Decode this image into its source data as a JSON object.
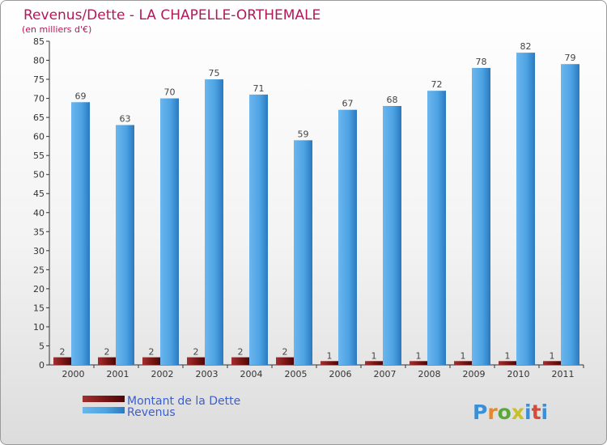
{
  "chart_data": {
    "type": "bar",
    "title": "Revenus/Dette - LA CHAPELLE-ORTHEMALE",
    "subtitle": "(en milliers d'€)",
    "categories": [
      "2000",
      "2001",
      "2002",
      "2003",
      "2004",
      "2005",
      "2006",
      "2007",
      "2008",
      "2009",
      "2010",
      "2011"
    ],
    "series": [
      {
        "name": "Montant de la Dette",
        "values": [
          2,
          2,
          2,
          2,
          2,
          2,
          1,
          1,
          1,
          1,
          1,
          1
        ]
      },
      {
        "name": "Revenus",
        "values": [
          69,
          63,
          70,
          75,
          71,
          59,
          67,
          68,
          72,
          78,
          82,
          79
        ]
      }
    ],
    "ylim": [
      0,
      85
    ],
    "yticks": [
      0,
      5,
      10,
      15,
      20,
      25,
      30,
      35,
      40,
      45,
      50,
      55,
      60,
      65,
      70,
      75,
      80,
      85
    ],
    "grid": false,
    "legend_position": "bottom-left"
  },
  "colors": {
    "title": "#b5175a",
    "debt_dark": "#5e0d0d",
    "debt_light": "#9c2a2a",
    "revenue_dark": "#2f7fc4",
    "revenue_light": "#5eaeea",
    "legend_text": "#3a5fd0",
    "axis": "#333333"
  },
  "logo": {
    "text": "Proxiti"
  }
}
